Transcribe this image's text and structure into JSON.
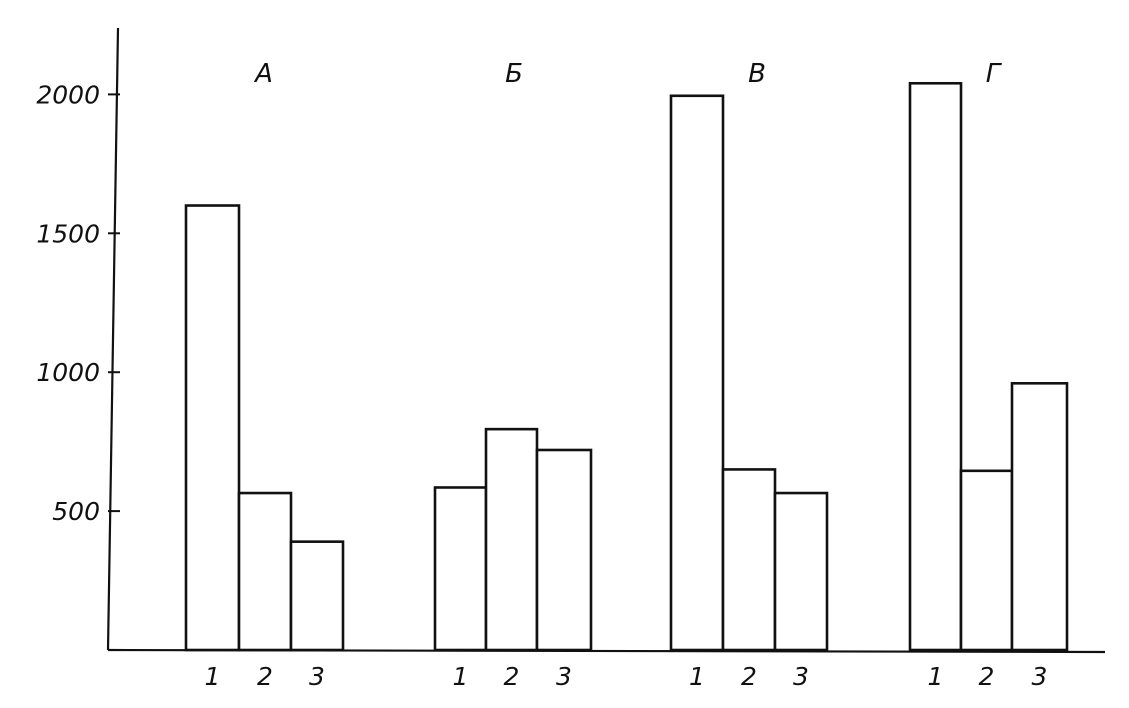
{
  "chart_data": {
    "type": "bar",
    "title": "",
    "xlabel": "",
    "ylabel": "",
    "ylim": [
      0,
      2250
    ],
    "yticks": [
      500,
      1000,
      1500,
      2000
    ],
    "ytick_labels": [
      "500",
      "1000",
      "1500",
      "2000"
    ],
    "grid": false,
    "groups": [
      {
        "label": "А",
        "categories": [
          "1",
          "2",
          "3"
        ],
        "values": [
          1600,
          565,
          390
        ]
      },
      {
        "label": "Б",
        "categories": [
          "1",
          "2",
          "3"
        ],
        "values": [
          585,
          795,
          720
        ]
      },
      {
        "label": "В",
        "categories": [
          "1",
          "2",
          "3"
        ],
        "values": [
          1995,
          650,
          565
        ]
      },
      {
        "label": "Г",
        "categories": [
          "1",
          "2",
          "3"
        ],
        "values": [
          2040,
          645,
          960
        ]
      }
    ]
  }
}
